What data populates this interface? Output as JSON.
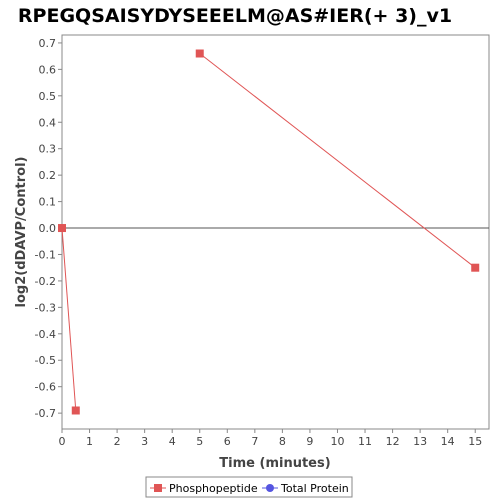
{
  "chart_data": {
    "type": "line",
    "title": "RPEGQSAISYDYSEEELM@AS#IER(+ 3)_v1",
    "xlabel": "Time (minutes)",
    "ylabel": "log2(dDAVP/Control)",
    "xlim": [
      0,
      15.5
    ],
    "ylim": [
      -0.76,
      0.73
    ],
    "x_ticks": [
      0,
      1,
      2,
      3,
      4,
      5,
      6,
      7,
      8,
      9,
      10,
      11,
      12,
      13,
      14,
      15
    ],
    "y_ticks": [
      0.7,
      0.6,
      0.5,
      0.4,
      0.3,
      0.2,
      0.1,
      0.0,
      -0.1,
      -0.2,
      -0.3,
      -0.4,
      -0.5,
      -0.6,
      -0.7
    ],
    "grid": false,
    "zero_line": true,
    "legend_position": "bottom",
    "series": [
      {
        "name": "Phosphopeptide",
        "color": "#e05555",
        "marker": "square",
        "segments": [
          [
            {
              "x": 0,
              "y": 0.0
            },
            {
              "x": 0.5,
              "y": -0.69
            }
          ],
          [
            {
              "x": 5,
              "y": 0.66
            },
            {
              "x": 15,
              "y": -0.15
            }
          ]
        ]
      },
      {
        "name": "Total Protein",
        "color": "#5555e0",
        "marker": "circle",
        "segments": []
      }
    ]
  }
}
